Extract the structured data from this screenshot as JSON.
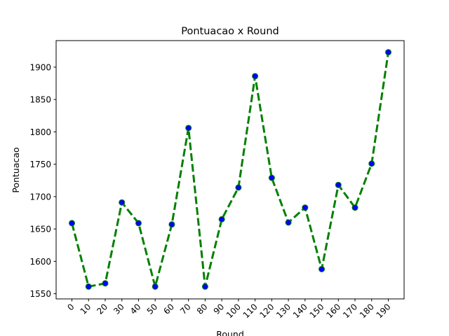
{
  "chart_data": {
    "type": "line",
    "title": "Pontuacao x Round",
    "xlabel": "Round",
    "ylabel": "Pontuacao",
    "x": [
      0,
      10,
      20,
      30,
      40,
      50,
      60,
      70,
      80,
      90,
      100,
      110,
      120,
      130,
      140,
      150,
      160,
      170,
      180,
      190
    ],
    "xticks": [
      "0",
      "10",
      "20",
      "30",
      "40",
      "50",
      "60",
      "70",
      "80",
      "90",
      "100",
      "110",
      "120",
      "130",
      "140",
      "150",
      "160",
      "170",
      "180",
      "190"
    ],
    "yticks": [
      "1550",
      "1600",
      "1650",
      "1700",
      "1750",
      "1800",
      "1850",
      "1900"
    ],
    "ylim": [
      1542,
      1941
    ],
    "grid": false,
    "series": [
      {
        "values": [
          1659,
          1561,
          1566,
          1691,
          1659,
          1561,
          1657,
          1806,
          1561,
          1665,
          1714,
          1886,
          1729,
          1660,
          1683,
          1588,
          1718,
          1683,
          1751,
          1923
        ],
        "line_color": "#008000",
        "line_style": "dashed",
        "marker_face": "#0000ff",
        "marker_edge": "#008000"
      }
    ]
  }
}
